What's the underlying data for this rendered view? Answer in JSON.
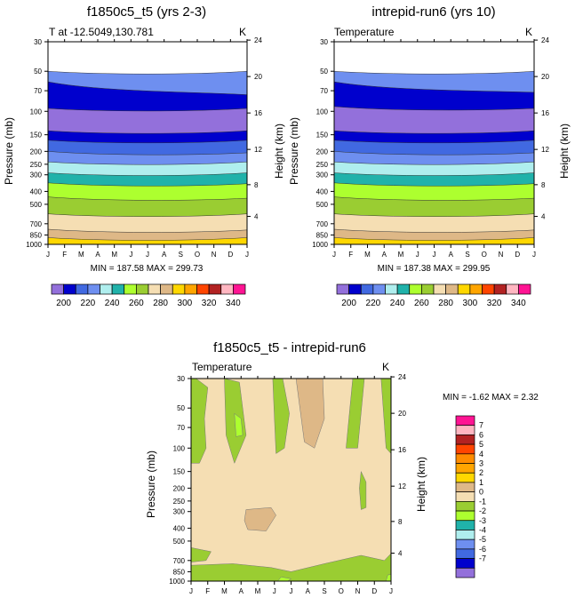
{
  "chart_data": [
    {
      "type": "contour",
      "title": "f1850c5_t5 (yrs 2-3)",
      "left_label": "T at -12.5049,130.781",
      "right_label": "K",
      "ylabel": "Pressure (mb)",
      "ylabel_right": "Height (km)",
      "x_ticks": [
        "J",
        "F",
        "M",
        "A",
        "M",
        "J",
        "J",
        "A",
        "S",
        "O",
        "N",
        "D",
        "J"
      ],
      "p_ticks": [
        30,
        50,
        70,
        100,
        150,
        200,
        250,
        300,
        400,
        500,
        700,
        850,
        1000
      ],
      "h_ticks": [
        4,
        8,
        12,
        16,
        20,
        24
      ],
      "ylim": [
        1000,
        30
      ],
      "minmax": "MIN = 187.58 MAX = 299.73",
      "levels": [
        200,
        210,
        220,
        230,
        240,
        250,
        260,
        270,
        280,
        290,
        300,
        310,
        320,
        330,
        340
      ],
      "colorbar_labels": [
        "200",
        "220",
        "240",
        "260",
        "280",
        "300",
        "320",
        "340"
      ],
      "bands": [
        {
          "level": 220,
          "top_p": [
            50,
            50
          ],
          "color": "#6E8FF0"
        },
        {
          "level": 210,
          "top_p": [
            60,
            75
          ],
          "color": "#0000CD"
        },
        {
          "level": 200,
          "top_p": [
            95,
            95
          ],
          "color": "#9370DB"
        },
        {
          "level": 210,
          "top_p": [
            140,
            140
          ],
          "color": "#0000CD"
        },
        {
          "level": 220,
          "top_p": [
            165,
            165
          ],
          "color": "#4169E1"
        },
        {
          "level": 230,
          "top_p": [
            200,
            205
          ],
          "color": "#6E8FF0"
        },
        {
          "level": 240,
          "top_p": [
            240,
            240
          ],
          "color": "#AFEEEE"
        },
        {
          "level": 250,
          "top_p": [
            290,
            290
          ],
          "color": "#20B2AA"
        },
        {
          "level": 260,
          "top_p": [
            345,
            350
          ],
          "color": "#ADFF2F"
        },
        {
          "level": 270,
          "top_p": [
            440,
            450
          ],
          "color": "#9ACD32"
        },
        {
          "level": 280,
          "top_p": [
            590,
            590
          ],
          "color": "#F5DEB3"
        },
        {
          "level": 290,
          "top_p": [
            770,
            780
          ],
          "color": "#DEB887"
        },
        {
          "level": 300,
          "top_p": [
            890,
            890
          ],
          "color": "#FFD700"
        }
      ]
    },
    {
      "type": "contour",
      "title": "intrepid-run6 (yrs 10)",
      "left_label": "Temperature",
      "right_label": "K",
      "ylabel": "Pressure (mb)",
      "ylabel_right": "Height (km)",
      "x_ticks": [
        "J",
        "F",
        "M",
        "A",
        "M",
        "J",
        "J",
        "A",
        "S",
        "O",
        "N",
        "D",
        "J"
      ],
      "p_ticks": [
        30,
        50,
        70,
        100,
        150,
        200,
        250,
        300,
        400,
        500,
        700,
        850,
        1000
      ],
      "h_ticks": [
        4,
        8,
        12,
        16,
        20,
        24
      ],
      "ylim": [
        1000,
        30
      ],
      "minmax": "MIN = 187.38 MAX = 299.95",
      "levels": [
        200,
        210,
        220,
        230,
        240,
        250,
        260,
        270,
        280,
        290,
        300,
        310,
        320,
        330,
        340
      ],
      "colorbar_labels": [
        "200",
        "220",
        "240",
        "260",
        "280",
        "300",
        "320",
        "340"
      ],
      "bands": [
        {
          "level": 220,
          "top_p": [
            50,
            50
          ],
          "color": "#6E8FF0"
        },
        {
          "level": 210,
          "top_p": [
            60,
            72
          ],
          "color": "#0000CD"
        },
        {
          "level": 200,
          "top_p": [
            92,
            95
          ],
          "color": "#9370DB"
        },
        {
          "level": 210,
          "top_p": [
            140,
            140
          ],
          "color": "#0000CD"
        },
        {
          "level": 220,
          "top_p": [
            165,
            165
          ],
          "color": "#4169E1"
        },
        {
          "level": 230,
          "top_p": [
            200,
            205
          ],
          "color": "#6E8FF0"
        },
        {
          "level": 240,
          "top_p": [
            240,
            240
          ],
          "color": "#AFEEEE"
        },
        {
          "level": 250,
          "top_p": [
            290,
            290
          ],
          "color": "#20B2AA"
        },
        {
          "level": 260,
          "top_p": [
            345,
            350
          ],
          "color": "#ADFF2F"
        },
        {
          "level": 270,
          "top_p": [
            440,
            450
          ],
          "color": "#9ACD32"
        },
        {
          "level": 280,
          "top_p": [
            590,
            590
          ],
          "color": "#F5DEB3"
        },
        {
          "level": 290,
          "top_p": [
            770,
            780
          ],
          "color": "#DEB887"
        },
        {
          "level": 300,
          "top_p": [
            890,
            890
          ],
          "color": "#FFD700"
        }
      ]
    },
    {
      "type": "contour",
      "title": "f1850c5_t5 - intrepid-run6",
      "left_label": "Temperature",
      "right_label": "K",
      "ylabel": "Pressure (mb)",
      "ylabel_right": "Height (km)",
      "x_ticks": [
        "J",
        "F",
        "M",
        "A",
        "M",
        "J",
        "J",
        "A",
        "S",
        "O",
        "N",
        "D",
        "J"
      ],
      "p_ticks": [
        30,
        50,
        70,
        100,
        150,
        200,
        250,
        300,
        400,
        500,
        700,
        850,
        1000
      ],
      "h_ticks": [
        4,
        8,
        12,
        16,
        20,
        24
      ],
      "ylim": [
        1000,
        30
      ],
      "minmax": "MIN =  -1.62 MAX =   2.32",
      "levels": [
        -7,
        -6,
        -5,
        -4,
        -3,
        -2,
        -1,
        0,
        1,
        2,
        3,
        4,
        5,
        6,
        7
      ],
      "colorbar_labels": [
        "7",
        "6",
        "5",
        "4",
        "3",
        "2",
        "1",
        "0",
        "-1",
        "-2",
        "-3",
        "-4",
        "-5",
        "-6",
        "-7"
      ],
      "colorbar_colors": [
        "#FF1493",
        "#FFB6C1",
        "#B22222",
        "#FF4500",
        "#FF8C00",
        "#FFA500",
        "#FFD700",
        "#DEB887",
        "#F5DEB3",
        "#9ACD32",
        "#ADFF2F",
        "#20B2AA",
        "#AFEEEE",
        "#6E8FF0",
        "#4169E1",
        "#0000CD",
        "#9370DB"
      ],
      "background_color": "#F5DEB3",
      "regions": [
        {
          "range": "-1..0",
          "color": "#9ACD32",
          "month_pressure": [
            [
              0,
              30
            ],
            [
              0.3,
              30
            ],
            [
              1,
              35
            ],
            [
              0.8,
              60
            ],
            [
              0.9,
              100
            ],
            [
              0.5,
              130
            ],
            [
              0,
              130
            ]
          ]
        },
        {
          "range": "-1..0",
          "color": "#9ACD32",
          "month_pressure": [
            [
              2,
              30
            ],
            [
              2.9,
              32
            ],
            [
              3.3,
              80
            ],
            [
              2.6,
              130
            ],
            [
              2.1,
              80
            ]
          ]
        },
        {
          "range": "-2..-1",
          "color": "#ADFF2F",
          "month_pressure": [
            [
              2.6,
              55
            ],
            [
              3.0,
              60
            ],
            [
              3.1,
              80
            ],
            [
              2.7,
              82
            ]
          ]
        },
        {
          "range": "-1..0",
          "color": "#9ACD32",
          "month_pressure": [
            [
              4.9,
              30
            ],
            [
              5.5,
              30
            ],
            [
              5.9,
              55
            ],
            [
              5.6,
              100
            ],
            [
              5.1,
              110
            ],
            [
              5.0,
              60
            ]
          ]
        },
        {
          "range": "0..1",
          "color": "#DEB887",
          "month_pressure": [
            [
              6.3,
              30
            ],
            [
              7.9,
              30
            ],
            [
              8.0,
              60
            ],
            [
              7.4,
              100
            ],
            [
              6.8,
              90
            ]
          ]
        },
        {
          "range": "-1..0",
          "color": "#9ACD32",
          "month_pressure": [
            [
              9.7,
              30
            ],
            [
              10.4,
              30
            ],
            [
              10.0,
              100
            ],
            [
              9.3,
              100
            ]
          ]
        },
        {
          "range": "-1..0",
          "color": "#9ACD32",
          "month_pressure": [
            [
              11.4,
              30
            ],
            [
              12,
              30
            ],
            [
              12,
              110
            ],
            [
              11.7,
              100
            ]
          ]
        },
        {
          "range": "-1..0",
          "color": "#9ACD32",
          "month_pressure": [
            [
              10.2,
              150
            ],
            [
              10.5,
              180
            ],
            [
              10.5,
              280
            ],
            [
              10.2,
              290
            ],
            [
              10.1,
              200
            ]
          ]
        },
        {
          "range": "0..1",
          "color": "#DEB887",
          "month_pressure": [
            [
              3.3,
              290
            ],
            [
              4.8,
              280
            ],
            [
              5.1,
              320
            ],
            [
              4.5,
              420
            ],
            [
              3.4,
              410
            ],
            [
              3.2,
              350
            ]
          ]
        },
        {
          "range": "-1..0",
          "color": "#9ACD32",
          "month_pressure": [
            [
              0,
              560
            ],
            [
              0.6,
              580
            ],
            [
              1.2,
              600
            ],
            [
              0.9,
              700
            ],
            [
              0,
              720
            ]
          ]
        },
        {
          "range": "-1..0",
          "color": "#9ACD32",
          "month_pressure": [
            [
              0,
              760
            ],
            [
              2.5,
              740
            ],
            [
              4.8,
              790
            ],
            [
              6.0,
              850
            ],
            [
              8.0,
              740
            ],
            [
              10.2,
              640
            ],
            [
              11.6,
              700
            ],
            [
              12,
              620
            ],
            [
              12,
              1000
            ],
            [
              0,
              1000
            ]
          ]
        },
        {
          "range": "-2..-1",
          "color": "#ADFF2F",
          "month_pressure": [
            [
              5.4,
              930
            ],
            [
              6.0,
              960
            ],
            [
              5.8,
              1000
            ],
            [
              5.2,
              1000
            ]
          ]
        },
        {
          "range": "-2..-1",
          "color": "#ADFF2F",
          "month_pressure": [
            [
              11.8,
              900
            ],
            [
              12,
              890
            ],
            [
              12,
              1000
            ],
            [
              11.7,
              1000
            ]
          ]
        }
      ]
    }
  ]
}
